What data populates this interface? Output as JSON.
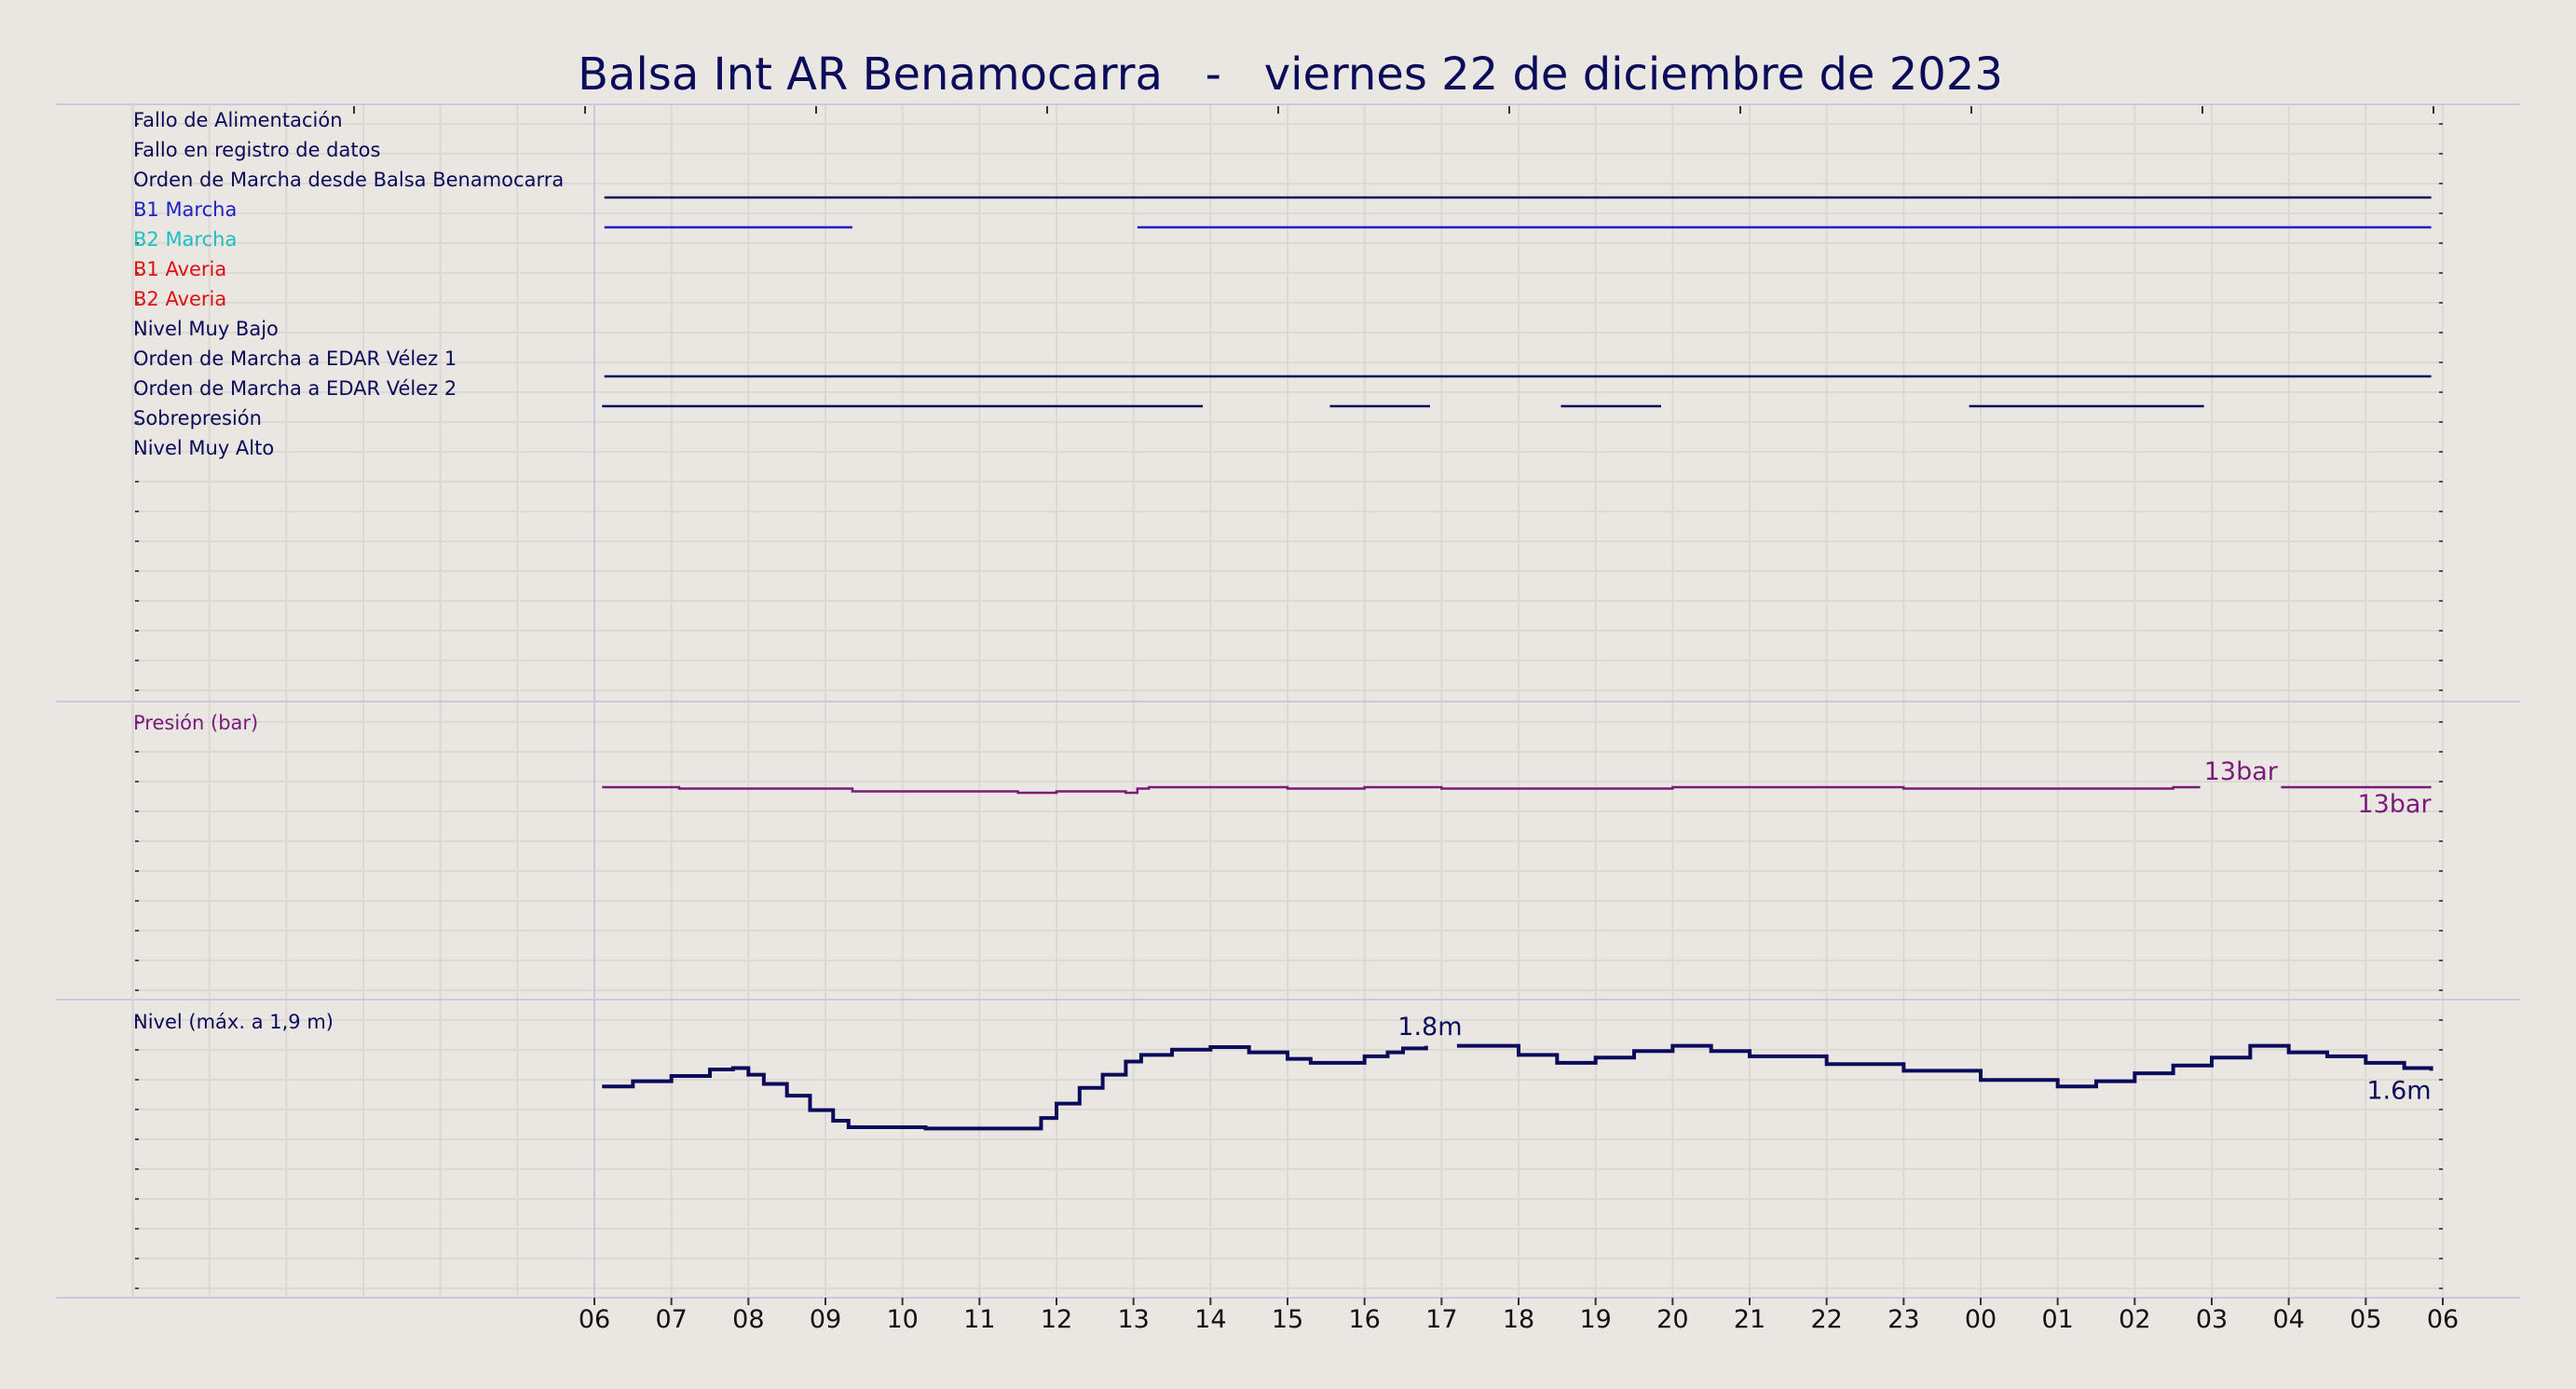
{
  "chart_data": {
    "type": "line",
    "title": "Balsa Int AR Benamocarra   -   viernes 22 de diciembre de 2023",
    "x_tick_labels": [
      "06",
      "07",
      "08",
      "09",
      "10",
      "11",
      "12",
      "13",
      "14",
      "15",
      "16",
      "17",
      "18",
      "19",
      "20",
      "21",
      "22",
      "23",
      "00",
      "01",
      "02",
      "03",
      "04",
      "05",
      "06"
    ],
    "x_axis_hours": [
      0,
      24
    ],
    "grid": true,
    "colors": {
      "navy": "#0b0b5c",
      "blue": "#1c22c8",
      "cyan": "#1cc0c0",
      "red": "#e01010",
      "purple": "#7a1a7a",
      "background": "#eae6e1",
      "grid": "#dcd8d6",
      "separator": "#c8c8e0"
    },
    "digital_panel": {
      "signals": [
        {
          "label": "Fallo de Alimentación",
          "color": "#0b0b5c",
          "intervals": []
        },
        {
          "label": "Fallo en registro de datos",
          "color": "#0b0b5c",
          "intervals": []
        },
        {
          "label": "Orden de Marcha desde Balsa Benamocarra",
          "color": "#0b0b5c",
          "intervals": [
            [
              0.13,
              23.85
            ]
          ]
        },
        {
          "label": "B1 Marcha",
          "color": "#1c22c8",
          "intervals": [
            [
              0.13,
              3.35
            ],
            [
              7.05,
              23.85
            ]
          ]
        },
        {
          "label": "B2 Marcha",
          "color": "#1cc0c0",
          "intervals": []
        },
        {
          "label": "B1 Averia",
          "color": "#e01010",
          "intervals": []
        },
        {
          "label": "B2 Averia",
          "color": "#e01010",
          "intervals": []
        },
        {
          "label": "Nivel Muy Bajo",
          "color": "#0b0b5c",
          "intervals": []
        },
        {
          "label": "Orden de Marcha a EDAR Vélez 1",
          "color": "#0b0b5c",
          "intervals": [
            [
              0.13,
              23.85
            ]
          ]
        },
        {
          "label": "Orden de Marcha a EDAR Vélez 2",
          "color": "#0b0b5c",
          "intervals": [
            [
              0.1,
              7.9
            ],
            [
              9.55,
              10.85
            ],
            [
              12.55,
              13.85
            ],
            [
              17.85,
              20.9
            ]
          ]
        },
        {
          "label": "Sobrepresión",
          "color": "#0b0b5c",
          "intervals": []
        },
        {
          "label": "Nivel Muy Alto",
          "color": "#0b0b5c",
          "intervals": []
        }
      ]
    },
    "pressure_panel": {
      "label": "Presión (bar)",
      "unit": "bar",
      "ylim": [
        0,
        16
      ],
      "color": "#7a1a7a",
      "series": [
        {
          "name": "Presión",
          "x": [
            0.1,
            1.0,
            1.1,
            3.3,
            3.35,
            4.5,
            5.5,
            6.0,
            6.9,
            7.05,
            7.2,
            9.0,
            10.0,
            11.0,
            14.0,
            17.0,
            20.5,
            20.85
          ],
          "y": [
            13.0,
            13.0,
            12.9,
            12.9,
            12.7,
            12.7,
            12.6,
            12.7,
            12.6,
            12.9,
            13.0,
            12.9,
            13.0,
            12.9,
            13.0,
            12.9,
            13.0,
            13.0
          ]
        },
        {
          "name": "Presión",
          "x": [
            21.9,
            23.85
          ],
          "y": [
            13.0,
            13.0
          ]
        }
      ],
      "annotations": [
        {
          "text": "13bar",
          "x": 20.9,
          "y": 13.0
        },
        {
          "text": "13bar",
          "x": 23.85,
          "y": 13.0
        }
      ]
    },
    "level_panel": {
      "label": "Nivel (máx. a 1,9 m)",
      "unit": "m",
      "ylim": [
        0,
        1.95
      ],
      "color": "#0b0b5c",
      "series": [
        {
          "name": "Nivel",
          "x": [
            0.1,
            0.5,
            1.0,
            1.5,
            1.8,
            2.0,
            2.2,
            2.5,
            2.8,
            3.1,
            3.3,
            3.6,
            4.0,
            4.3,
            5.0,
            5.5,
            5.8,
            6.0,
            6.3,
            6.6,
            6.9,
            7.1,
            7.5,
            8.0,
            8.5,
            9.0,
            9.3,
            9.6,
            10.0,
            10.3,
            10.5,
            10.8
          ],
          "y": [
            1.48,
            1.52,
            1.56,
            1.61,
            1.62,
            1.57,
            1.5,
            1.41,
            1.3,
            1.22,
            1.17,
            1.17,
            1.17,
            1.16,
            1.16,
            1.16,
            1.24,
            1.35,
            1.47,
            1.57,
            1.67,
            1.72,
            1.76,
            1.78,
            1.74,
            1.69,
            1.66,
            1.66,
            1.71,
            1.74,
            1.77,
            1.79
          ]
        },
        {
          "name": "Nivel",
          "x": [
            11.2,
            12.0,
            12.5,
            13.0,
            13.5,
            14.0,
            14.5,
            15.0,
            16.0,
            17.0,
            18.0,
            19.0,
            19.5,
            20.0,
            20.5,
            21.0,
            21.5,
            22.0,
            22.5,
            23.0,
            23.5,
            23.85
          ],
          "y": [
            1.79,
            1.72,
            1.66,
            1.7,
            1.75,
            1.79,
            1.75,
            1.71,
            1.65,
            1.6,
            1.53,
            1.48,
            1.52,
            1.58,
            1.64,
            1.7,
            1.79,
            1.74,
            1.71,
            1.66,
            1.62,
            1.6
          ]
        }
      ],
      "annotations": [
        {
          "text": "1.8m",
          "x": 10.85,
          "y": 1.8
        },
        {
          "text": "1.6m",
          "x": 23.85,
          "y": 1.6
        }
      ]
    }
  }
}
